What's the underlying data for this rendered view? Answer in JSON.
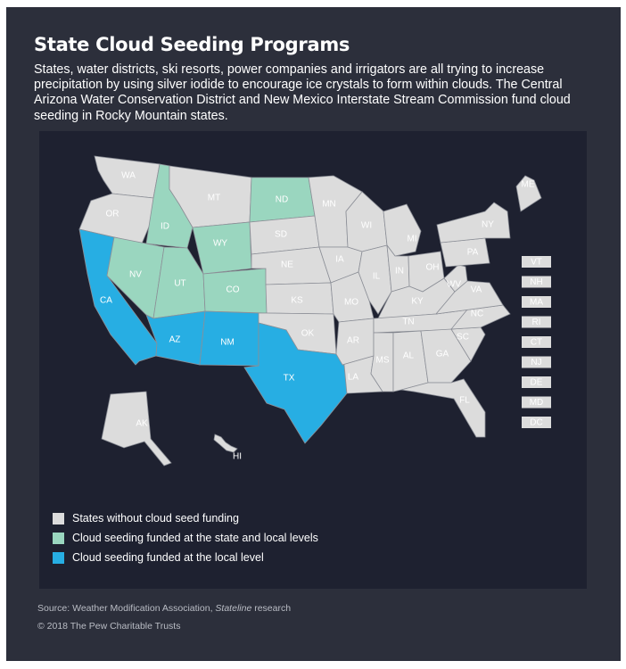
{
  "title": "State Cloud Seeding Programs",
  "subtitle": "States, water districts, ski resorts, power companies and irrigators are all trying to increase precipitation by using silver iodide to encourage ice crystals to form within clouds. The Central Arizona Water Conservation District and New Mexico Interstate Stream Commission fund cloud seeding in Rocky Mountain states.",
  "colors": {
    "none": "#dcdcdc",
    "state_and_local": "#9ad6bf",
    "local": "#27aee3",
    "background": "#2c2f3b",
    "map_panel": "#1e2130"
  },
  "legend": [
    {
      "category": "none",
      "label": "States without cloud seed funding"
    },
    {
      "category": "state_and_local",
      "label": "Cloud seeding funded at the state and local levels"
    },
    {
      "category": "local",
      "label": "Cloud seeding funded at the local level"
    }
  ],
  "states": [
    {
      "abbr": "WA",
      "category": "none"
    },
    {
      "abbr": "OR",
      "category": "none"
    },
    {
      "abbr": "CA",
      "category": "local"
    },
    {
      "abbr": "NV",
      "category": "state_and_local"
    },
    {
      "abbr": "ID",
      "category": "state_and_local"
    },
    {
      "abbr": "MT",
      "category": "none"
    },
    {
      "abbr": "WY",
      "category": "state_and_local"
    },
    {
      "abbr": "UT",
      "category": "state_and_local"
    },
    {
      "abbr": "CO",
      "category": "state_and_local"
    },
    {
      "abbr": "AZ",
      "category": "local"
    },
    {
      "abbr": "NM",
      "category": "local"
    },
    {
      "abbr": "ND",
      "category": "state_and_local"
    },
    {
      "abbr": "SD",
      "category": "none"
    },
    {
      "abbr": "NE",
      "category": "none"
    },
    {
      "abbr": "KS",
      "category": "none"
    },
    {
      "abbr": "OK",
      "category": "none"
    },
    {
      "abbr": "TX",
      "category": "local"
    },
    {
      "abbr": "MN",
      "category": "none"
    },
    {
      "abbr": "IA",
      "category": "none"
    },
    {
      "abbr": "MO",
      "category": "none"
    },
    {
      "abbr": "AR",
      "category": "none"
    },
    {
      "abbr": "LA",
      "category": "none"
    },
    {
      "abbr": "WI",
      "category": "none"
    },
    {
      "abbr": "IL",
      "category": "none"
    },
    {
      "abbr": "MI",
      "category": "none"
    },
    {
      "abbr": "IN",
      "category": "none"
    },
    {
      "abbr": "OH",
      "category": "none"
    },
    {
      "abbr": "KY",
      "category": "none"
    },
    {
      "abbr": "TN",
      "category": "none"
    },
    {
      "abbr": "MS",
      "category": "none"
    },
    {
      "abbr": "AL",
      "category": "none"
    },
    {
      "abbr": "GA",
      "category": "none"
    },
    {
      "abbr": "FL",
      "category": "none"
    },
    {
      "abbr": "SC",
      "category": "none"
    },
    {
      "abbr": "NC",
      "category": "none"
    },
    {
      "abbr": "VA",
      "category": "none"
    },
    {
      "abbr": "WV",
      "category": "none"
    },
    {
      "abbr": "PA",
      "category": "none"
    },
    {
      "abbr": "NY",
      "category": "none"
    },
    {
      "abbr": "ME",
      "category": "none"
    },
    {
      "abbr": "AK",
      "category": "none"
    },
    {
      "abbr": "HI",
      "category": "none"
    }
  ],
  "small_states": [
    {
      "abbr": "VT",
      "category": "none"
    },
    {
      "abbr": "NH",
      "category": "none"
    },
    {
      "abbr": "MA",
      "category": "none"
    },
    {
      "abbr": "RI",
      "category": "none"
    },
    {
      "abbr": "CT",
      "category": "none"
    },
    {
      "abbr": "NJ",
      "category": "none"
    },
    {
      "abbr": "DE",
      "category": "none"
    },
    {
      "abbr": "MD",
      "category": "none"
    },
    {
      "abbr": "DC",
      "category": "none"
    }
  ],
  "source": {
    "prefix": "Source: Weather Modification Association, ",
    "italic": "Stateline",
    "suffix": " research"
  },
  "copyright": "© 2018 The Pew Charitable Trusts"
}
